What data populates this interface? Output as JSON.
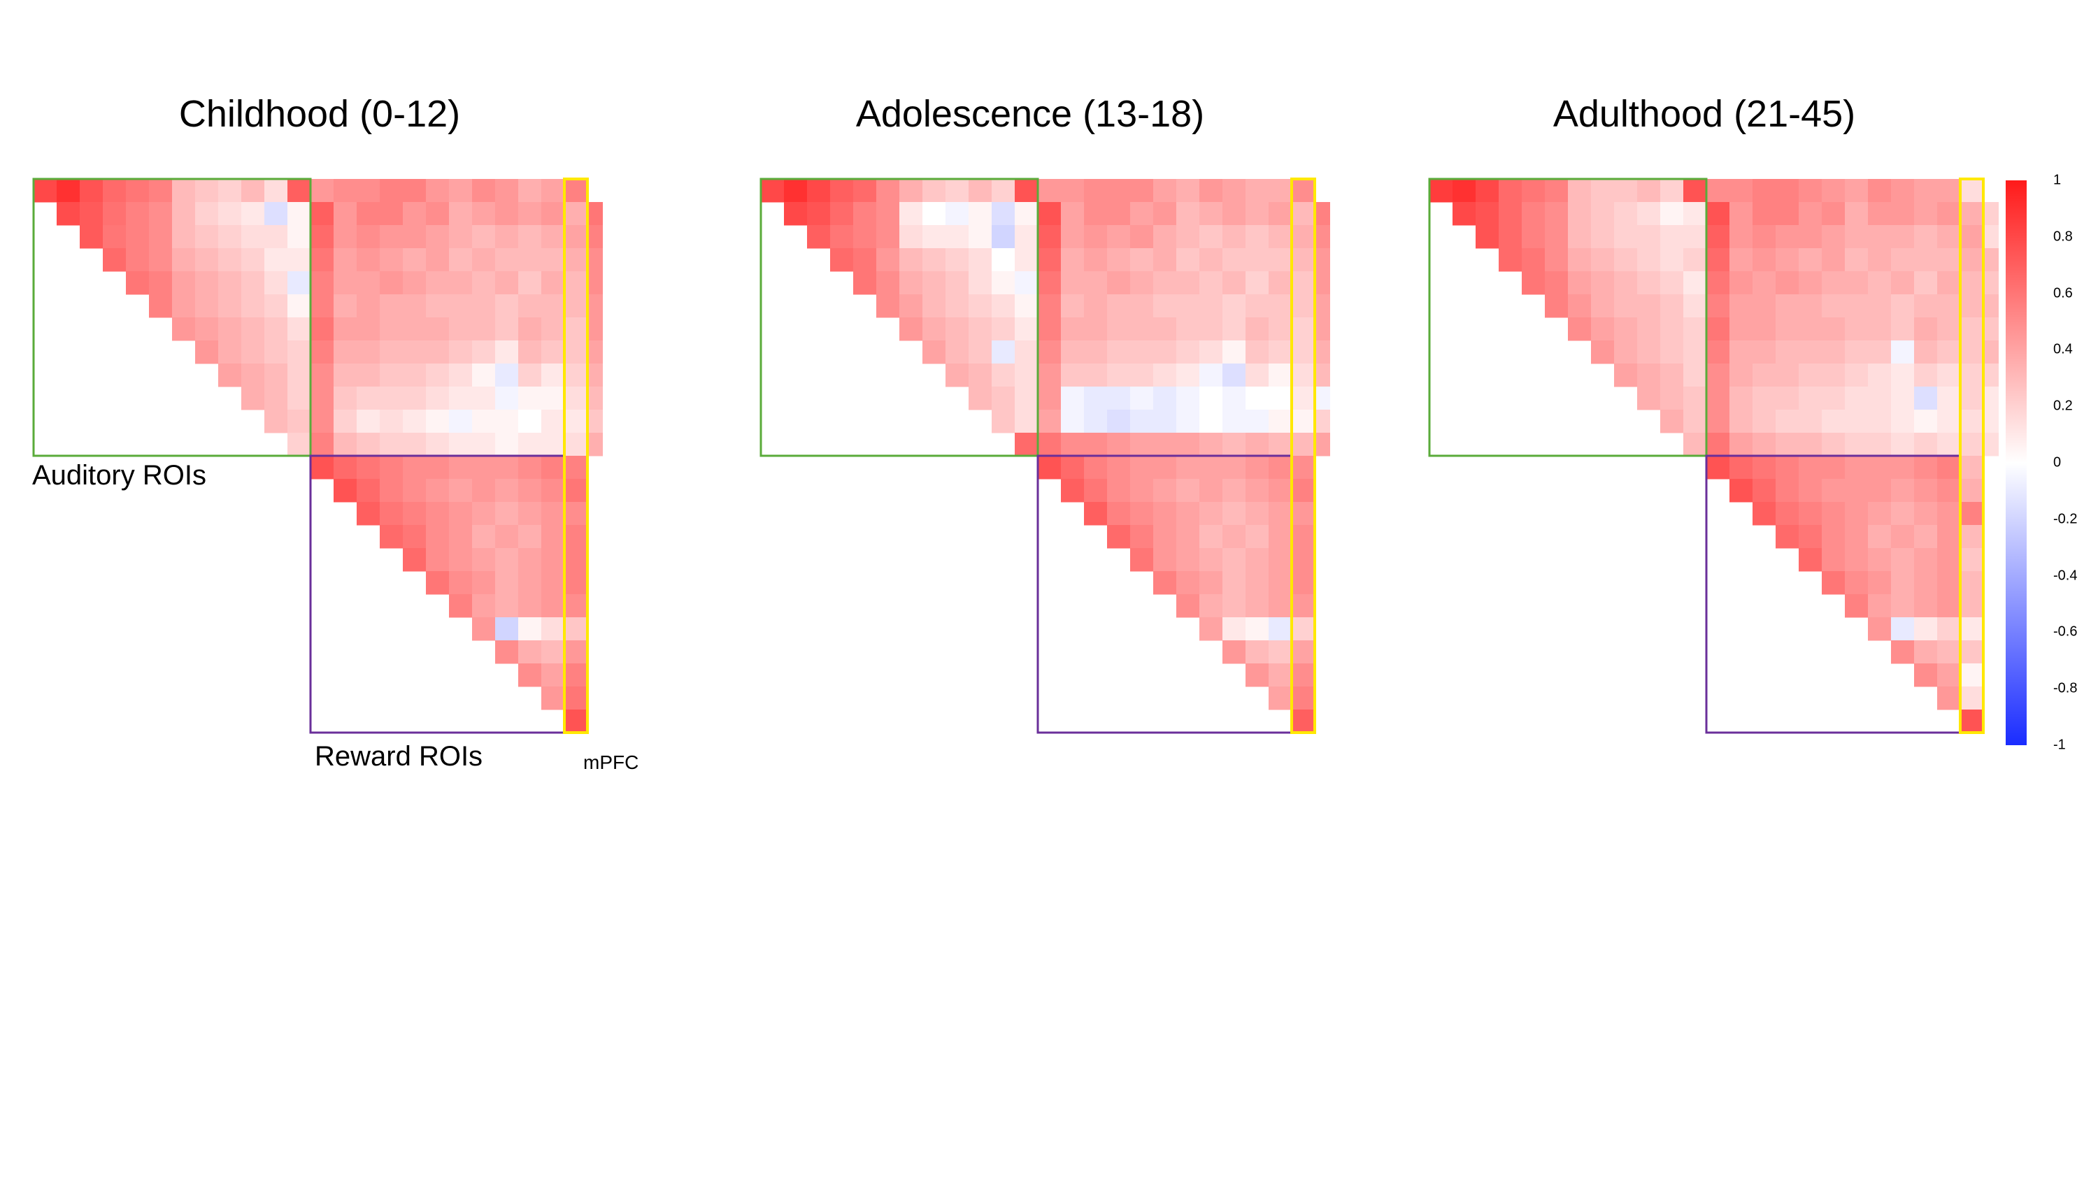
{
  "chart_data": {
    "type": "heatmap",
    "n_rois": 24,
    "groups": {
      "auditory": {
        "label": "Auditory ROIs",
        "start": 0,
        "end": 12,
        "color": "#5aab3a"
      },
      "reward": {
        "label": "Reward ROIs",
        "start": 12,
        "end": 24,
        "color": "#6a2f9a"
      },
      "mpfc": {
        "label": "mPFC",
        "color": "#ffe800"
      }
    },
    "colorscale": {
      "min": -1,
      "max": 1,
      "colors": [
        "#1a2cff",
        "#ffffff",
        "#ff1a1a"
      ],
      "ticks": [
        "1",
        "0.8",
        "0.6",
        "0.4",
        "0.2",
        "0",
        "-0.2",
        "-0.4",
        "-0.6",
        "-0.8",
        "-1"
      ]
    },
    "panels": [
      {
        "title": "Childhood (0-12)",
        "rows": [
          [
            0.8,
            0.9,
            0.75,
            0.65,
            0.6,
            0.55,
            0.3,
            0.25,
            0.2,
            0.3,
            0.15,
            0.7,
            0.45,
            0.5,
            0.5,
            0.55,
            0.55,
            0.45,
            0.4,
            0.5,
            0.45,
            0.35,
            0.4,
            0.55
          ],
          [
            0.78,
            0.72,
            0.62,
            0.55,
            0.5,
            0.3,
            0.2,
            0.15,
            0.1,
            -0.15,
            0.05,
            0.7,
            0.45,
            0.55,
            0.55,
            0.45,
            0.5,
            0.35,
            0.4,
            0.45,
            0.4,
            0.45,
            0.35,
            0.6
          ],
          [
            0.72,
            0.6,
            0.55,
            0.5,
            0.3,
            0.25,
            0.2,
            0.15,
            0.15,
            0.05,
            0.65,
            0.45,
            0.5,
            0.45,
            0.45,
            0.4,
            0.35,
            0.3,
            0.35,
            0.3,
            0.35,
            0.4,
            0.55
          ],
          [
            0.65,
            0.55,
            0.5,
            0.35,
            0.3,
            0.25,
            0.2,
            0.1,
            0.1,
            0.6,
            0.4,
            0.45,
            0.4,
            0.35,
            0.4,
            0.3,
            0.35,
            0.3,
            0.3,
            0.3,
            0.35,
            0.5
          ],
          [
            0.6,
            0.55,
            0.4,
            0.35,
            0.3,
            0.25,
            0.15,
            -0.1,
            0.55,
            0.4,
            0.4,
            0.45,
            0.4,
            0.35,
            0.35,
            0.3,
            0.35,
            0.25,
            0.35,
            0.3,
            0.5
          ],
          [
            0.55,
            0.4,
            0.35,
            0.3,
            0.25,
            0.2,
            0.05,
            0.55,
            0.35,
            0.4,
            0.35,
            0.35,
            0.3,
            0.3,
            0.3,
            0.25,
            0.3,
            0.3,
            0.3,
            0.45
          ],
          [
            0.45,
            0.4,
            0.35,
            0.3,
            0.25,
            0.15,
            0.6,
            0.4,
            0.4,
            0.35,
            0.35,
            0.35,
            0.3,
            0.3,
            0.25,
            0.35,
            0.3,
            0.25,
            0.45
          ],
          [
            0.45,
            0.35,
            0.3,
            0.25,
            0.2,
            0.55,
            0.35,
            0.35,
            0.3,
            0.3,
            0.3,
            0.25,
            0.2,
            0.1,
            0.3,
            0.25,
            0.25,
            0.4
          ],
          [
            0.4,
            0.35,
            0.3,
            0.2,
            0.5,
            0.3,
            0.3,
            0.25,
            0.25,
            0.2,
            0.15,
            0.05,
            -0.1,
            0.2,
            0.1,
            0.2,
            0.35
          ],
          [
            0.35,
            0.3,
            0.2,
            0.5,
            0.25,
            0.2,
            0.2,
            0.2,
            0.15,
            0.1,
            0.1,
            -0.05,
            0.05,
            0.05,
            0.15,
            0.3
          ],
          [
            0.3,
            0.25,
            0.5,
            0.2,
            0.1,
            0.15,
            0.1,
            0.05,
            -0.05,
            0.05,
            0.05,
            0.0,
            0.1,
            0.1,
            0.25
          ],
          [
            0.2,
            0.55,
            0.3,
            0.25,
            0.2,
            0.2,
            0.15,
            0.1,
            0.1,
            0.05,
            0.1,
            0.1,
            0.15,
            0.35
          ],
          [
            0.75,
            0.65,
            0.6,
            0.55,
            0.5,
            0.5,
            0.45,
            0.45,
            0.45,
            0.5,
            0.55,
            0.55
          ],
          [
            0.75,
            0.65,
            0.55,
            0.5,
            0.45,
            0.4,
            0.45,
            0.4,
            0.45,
            0.5,
            0.6
          ],
          [
            0.7,
            0.6,
            0.55,
            0.5,
            0.45,
            0.4,
            0.35,
            0.4,
            0.45,
            0.5
          ],
          [
            0.65,
            0.6,
            0.5,
            0.45,
            0.35,
            0.4,
            0.35,
            0.45,
            0.55
          ],
          [
            0.65,
            0.5,
            0.45,
            0.4,
            0.35,
            0.4,
            0.45,
            0.55
          ],
          [
            0.6,
            0.5,
            0.45,
            0.35,
            0.4,
            0.45,
            0.55
          ],
          [
            0.55,
            0.4,
            0.35,
            0.4,
            0.45,
            0.5
          ],
          [
            0.45,
            -0.2,
            0.05,
            0.15,
            0.25
          ],
          [
            0.5,
            0.35,
            0.3,
            0.45
          ],
          [
            0.5,
            0.4,
            0.55
          ],
          [
            0.45,
            0.6
          ],
          [
            0.75
          ]
        ]
      },
      {
        "title": "Adolescence (13-18)",
        "rows": [
          [
            0.8,
            0.9,
            0.8,
            0.7,
            0.65,
            0.5,
            0.35,
            0.25,
            0.2,
            0.3,
            0.2,
            0.75,
            0.45,
            0.45,
            0.5,
            0.5,
            0.5,
            0.4,
            0.35,
            0.45,
            0.4,
            0.35,
            0.35,
            0.5
          ],
          [
            0.8,
            0.75,
            0.65,
            0.55,
            0.5,
            0.1,
            0.0,
            -0.05,
            0.05,
            -0.15,
            0.05,
            0.75,
            0.4,
            0.5,
            0.5,
            0.4,
            0.45,
            0.3,
            0.35,
            0.4,
            0.35,
            0.4,
            0.3,
            0.55
          ],
          [
            0.7,
            0.6,
            0.55,
            0.5,
            0.15,
            0.1,
            0.1,
            0.05,
            -0.2,
            0.1,
            0.7,
            0.4,
            0.45,
            0.4,
            0.45,
            0.35,
            0.3,
            0.25,
            0.3,
            0.25,
            0.3,
            0.35,
            0.5
          ],
          [
            0.65,
            0.6,
            0.45,
            0.3,
            0.25,
            0.2,
            0.15,
            0.0,
            0.1,
            0.65,
            0.35,
            0.4,
            0.35,
            0.3,
            0.35,
            0.25,
            0.3,
            0.25,
            0.25,
            0.25,
            0.3,
            0.45
          ],
          [
            0.6,
            0.5,
            0.35,
            0.3,
            0.25,
            0.15,
            0.05,
            -0.05,
            0.6,
            0.35,
            0.35,
            0.4,
            0.35,
            0.3,
            0.3,
            0.25,
            0.3,
            0.2,
            0.3,
            0.25,
            0.45
          ],
          [
            0.5,
            0.4,
            0.3,
            0.25,
            0.2,
            0.15,
            0.05,
            0.55,
            0.3,
            0.35,
            0.3,
            0.3,
            0.25,
            0.25,
            0.25,
            0.2,
            0.25,
            0.25,
            0.25,
            0.4
          ],
          [
            0.45,
            0.35,
            0.3,
            0.25,
            0.2,
            0.1,
            0.55,
            0.35,
            0.35,
            0.3,
            0.3,
            0.3,
            0.25,
            0.25,
            0.2,
            0.3,
            0.25,
            0.2,
            0.4
          ],
          [
            0.4,
            0.3,
            0.25,
            -0.1,
            0.15,
            0.5,
            0.3,
            0.3,
            0.25,
            0.25,
            0.25,
            0.2,
            0.15,
            0.05,
            0.25,
            0.2,
            0.2,
            0.35
          ],
          [
            0.35,
            0.3,
            0.2,
            0.15,
            0.45,
            0.25,
            0.25,
            0.2,
            0.2,
            0.15,
            0.1,
            -0.05,
            -0.15,
            0.15,
            0.05,
            0.15,
            0.3
          ],
          [
            0.3,
            0.25,
            0.15,
            0.45,
            -0.05,
            -0.1,
            -0.1,
            -0.05,
            -0.1,
            -0.05,
            0.0,
            -0.05,
            0.0,
            0.0,
            0.1,
            -0.05
          ],
          [
            0.25,
            0.15,
            0.4,
            -0.05,
            -0.1,
            -0.15,
            -0.1,
            -0.1,
            -0.05,
            0.0,
            -0.05,
            -0.05,
            0.05,
            0.05,
            0.2
          ],
          [
            0.65,
            0.6,
            0.5,
            0.5,
            0.45,
            0.4,
            0.4,
            0.4,
            0.35,
            0.3,
            0.35,
            0.3,
            0.3,
            0.4
          ],
          [
            0.75,
            0.65,
            0.55,
            0.5,
            0.45,
            0.45,
            0.4,
            0.4,
            0.4,
            0.45,
            0.5,
            0.5
          ],
          [
            0.7,
            0.6,
            0.5,
            0.45,
            0.4,
            0.35,
            0.4,
            0.35,
            0.4,
            0.45,
            0.55
          ],
          [
            0.7,
            0.55,
            0.5,
            0.45,
            0.4,
            0.35,
            0.3,
            0.35,
            0.4,
            0.45
          ],
          [
            0.65,
            0.55,
            0.45,
            0.4,
            0.3,
            0.35,
            0.3,
            0.4,
            0.5
          ],
          [
            0.6,
            0.45,
            0.4,
            0.35,
            0.3,
            0.35,
            0.4,
            0.5
          ],
          [
            0.55,
            0.45,
            0.4,
            0.3,
            0.35,
            0.4,
            0.5
          ],
          [
            0.5,
            0.35,
            0.3,
            0.35,
            0.4,
            0.45
          ],
          [
            0.4,
            0.1,
            0.05,
            -0.1,
            0.2
          ],
          [
            0.45,
            0.3,
            0.25,
            0.4
          ],
          [
            0.45,
            0.35,
            0.5
          ],
          [
            0.4,
            0.55
          ],
          [
            0.7
          ]
        ]
      },
      {
        "title": "Adulthood (21-45)",
        "rows": [
          [
            0.85,
            0.9,
            0.8,
            0.65,
            0.6,
            0.55,
            0.3,
            0.25,
            0.25,
            0.3,
            0.2,
            0.75,
            0.5,
            0.5,
            0.55,
            0.55,
            0.5,
            0.45,
            0.4,
            0.5,
            0.45,
            0.4,
            0.4,
            0.15
          ],
          [
            0.8,
            0.75,
            0.65,
            0.55,
            0.5,
            0.3,
            0.25,
            0.2,
            0.15,
            0.05,
            0.1,
            0.75,
            0.45,
            0.55,
            0.55,
            0.45,
            0.5,
            0.35,
            0.45,
            0.45,
            0.4,
            0.45,
            0.35,
            0.2
          ],
          [
            0.75,
            0.65,
            0.55,
            0.5,
            0.3,
            0.25,
            0.2,
            0.2,
            0.15,
            0.15,
            0.7,
            0.45,
            0.5,
            0.45,
            0.45,
            0.4,
            0.35,
            0.35,
            0.35,
            0.3,
            0.35,
            0.4,
            0.15
          ],
          [
            0.65,
            0.6,
            0.5,
            0.35,
            0.3,
            0.25,
            0.2,
            0.15,
            0.2,
            0.65,
            0.4,
            0.45,
            0.4,
            0.35,
            0.4,
            0.3,
            0.35,
            0.3,
            0.3,
            0.3,
            0.35,
            0.3
          ],
          [
            0.6,
            0.55,
            0.4,
            0.35,
            0.3,
            0.25,
            0.2,
            0.1,
            0.6,
            0.45,
            0.4,
            0.45,
            0.4,
            0.35,
            0.35,
            0.3,
            0.35,
            0.25,
            0.35,
            0.3,
            0.25
          ],
          [
            0.55,
            0.45,
            0.35,
            0.3,
            0.3,
            0.25,
            0.15,
            0.55,
            0.4,
            0.4,
            0.35,
            0.35,
            0.3,
            0.3,
            0.3,
            0.25,
            0.3,
            0.3,
            0.3,
            0.3
          ],
          [
            0.5,
            0.4,
            0.35,
            0.3,
            0.25,
            0.2,
            0.6,
            0.4,
            0.4,
            0.35,
            0.35,
            0.35,
            0.3,
            0.3,
            0.25,
            0.35,
            0.3,
            0.25,
            0.25
          ],
          [
            0.45,
            0.35,
            0.3,
            0.25,
            0.2,
            0.55,
            0.35,
            0.35,
            0.3,
            0.3,
            0.3,
            0.25,
            0.25,
            -0.05,
            0.3,
            0.25,
            0.25,
            0.3
          ],
          [
            0.4,
            0.35,
            0.3,
            0.2,
            0.5,
            0.35,
            0.3,
            0.3,
            0.25,
            0.25,
            0.2,
            0.15,
            0.1,
            0.2,
            0.15,
            0.2,
            0.2
          ],
          [
            0.35,
            0.3,
            0.25,
            0.5,
            0.3,
            0.25,
            0.25,
            0.2,
            0.2,
            0.15,
            0.15,
            0.1,
            -0.15,
            0.1,
            0.2,
            0.1
          ],
          [
            0.35,
            0.25,
            0.5,
            0.3,
            0.25,
            0.2,
            0.2,
            0.15,
            0.15,
            0.15,
            0.1,
            0.05,
            0.1,
            0.15,
            0.1
          ],
          [
            0.3,
            0.6,
            0.4,
            0.35,
            0.3,
            0.3,
            0.25,
            0.2,
            0.2,
            0.15,
            0.2,
            0.15,
            0.2,
            0.15
          ],
          [
            0.75,
            0.65,
            0.6,
            0.55,
            0.5,
            0.5,
            0.45,
            0.45,
            0.45,
            0.5,
            0.55,
            0.3
          ],
          [
            0.75,
            0.65,
            0.55,
            0.5,
            0.45,
            0.45,
            0.45,
            0.4,
            0.45,
            0.5,
            0.35
          ],
          [
            0.7,
            0.6,
            0.55,
            0.5,
            0.45,
            0.4,
            0.35,
            0.4,
            0.45,
            0.55
          ],
          [
            0.65,
            0.6,
            0.5,
            0.45,
            0.35,
            0.4,
            0.35,
            0.45,
            0.3
          ],
          [
            0.65,
            0.5,
            0.45,
            0.4,
            0.35,
            0.4,
            0.45,
            0.25
          ],
          [
            0.6,
            0.5,
            0.45,
            0.35,
            0.4,
            0.45,
            0.3
          ],
          [
            0.55,
            0.4,
            0.35,
            0.4,
            0.45,
            0.3
          ],
          [
            0.45,
            -0.1,
            0.1,
            0.2,
            0.1
          ],
          [
            0.5,
            0.35,
            0.3,
            0.25
          ],
          [
            0.5,
            0.4,
            0.05
          ],
          [
            0.45,
            0.15
          ],
          [
            0.75
          ]
        ]
      }
    ]
  }
}
